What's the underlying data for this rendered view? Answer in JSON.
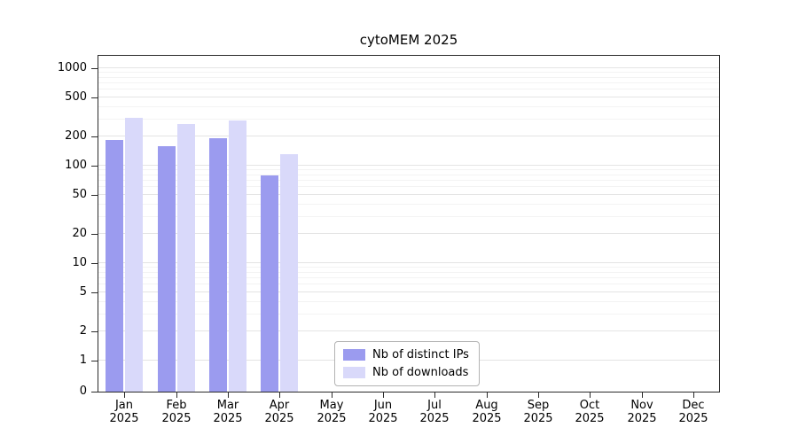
{
  "chart_data": {
    "type": "bar",
    "title": "cytoMEM 2025",
    "categories": [
      "Jan",
      "Feb",
      "Mar",
      "Apr",
      "May",
      "Jun",
      "Jul",
      "Aug",
      "Sep",
      "Oct",
      "Nov",
      "Dec"
    ],
    "year": "2025",
    "series": [
      {
        "name": "Nb of distinct IPs",
        "color": "#9b9bef",
        "values": [
          185,
          160,
          190,
          80,
          0,
          0,
          0,
          0,
          0,
          0,
          0,
          0
        ]
      },
      {
        "name": "Nb of downloads",
        "color": "#d9d9fa",
        "values": [
          310,
          265,
          290,
          130,
          0,
          0,
          0,
          0,
          0,
          0,
          0,
          0
        ]
      }
    ],
    "yscale": "symlog",
    "yticks": [
      0,
      1,
      2,
      5,
      10,
      20,
      50,
      100,
      200,
      500,
      1000
    ],
    "ylim": [
      0,
      1300
    ],
    "grid": "horizontal",
    "legend_position": "bottom-center-inside",
    "xlabel": "",
    "ylabel": ""
  }
}
